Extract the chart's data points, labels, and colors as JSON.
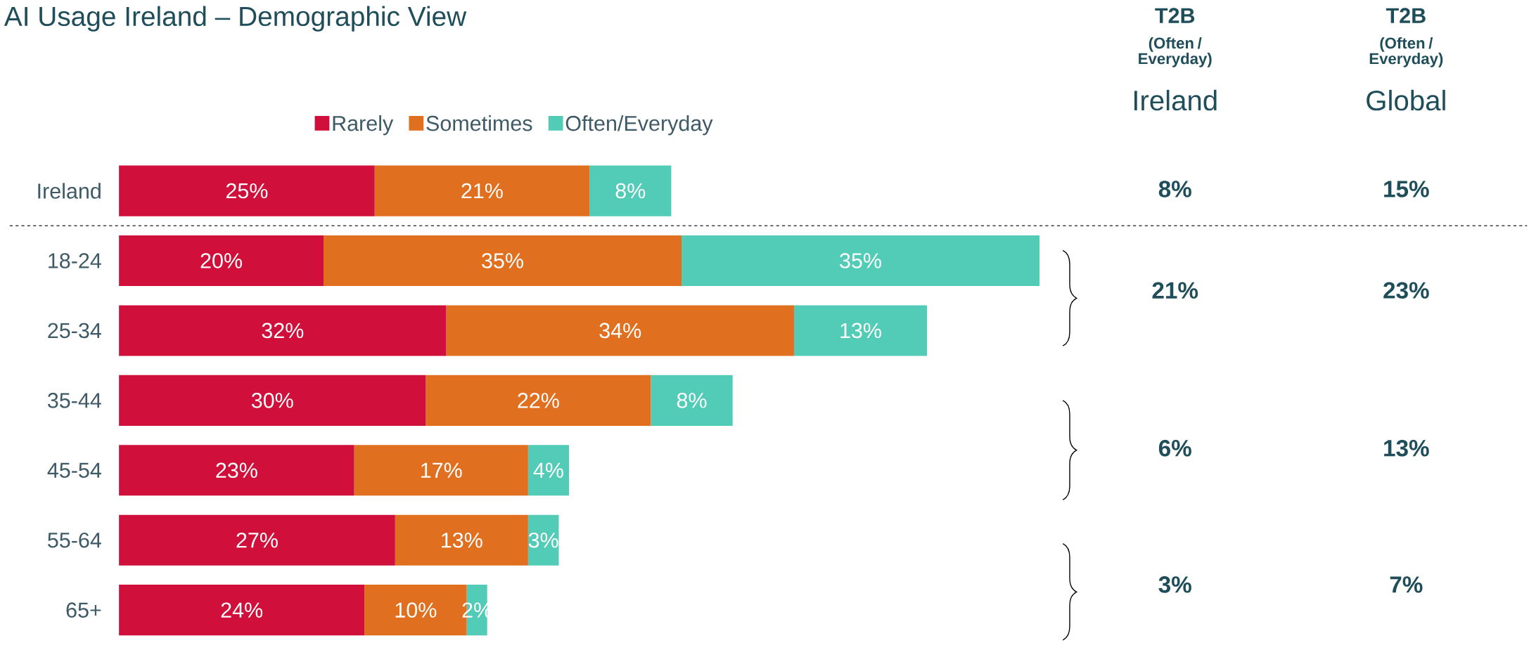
{
  "chart_data": {
    "type": "bar",
    "orientation": "horizontal",
    "stacked": true,
    "title": "AI Usage Ireland – Demographic View",
    "categories": [
      "Ireland",
      "18-24",
      "25-34",
      "35-44",
      "45-54",
      "55-64",
      "65+"
    ],
    "series": [
      {
        "name": "Rarely",
        "color": "#d0103a",
        "values": [
          25,
          20,
          32,
          30,
          23,
          27,
          24
        ],
        "value_labels": [
          "25%",
          "20%",
          "32%",
          "30%",
          "23%",
          "27%",
          "24%"
        ]
      },
      {
        "name": "Sometimes",
        "color": "#e07020",
        "values": [
          21,
          35,
          34,
          22,
          17,
          13,
          10
        ],
        "value_labels": [
          "21%",
          "35%",
          "34%",
          "22%",
          "17%",
          "13%",
          "10%"
        ]
      },
      {
        "name": "Often/Everyday",
        "color": "#52cbb7",
        "values": [
          8,
          35,
          13,
          8,
          4,
          3,
          2
        ],
        "value_labels": [
          "8%",
          "35%",
          "13%",
          "8%",
          "4%",
          "3%",
          "2%"
        ]
      }
    ],
    "tick_labels": "y",
    "legend": "top",
    "annotations": [
      "T2B",
      "(Often / Everyday)",
      "Ireland",
      "T2B",
      "(Often / Everyday)",
      "Global",
      "8%",
      "15%",
      "21%",
      "23%",
      "6%",
      "13%",
      "3%",
      "7%"
    ]
  }
}
